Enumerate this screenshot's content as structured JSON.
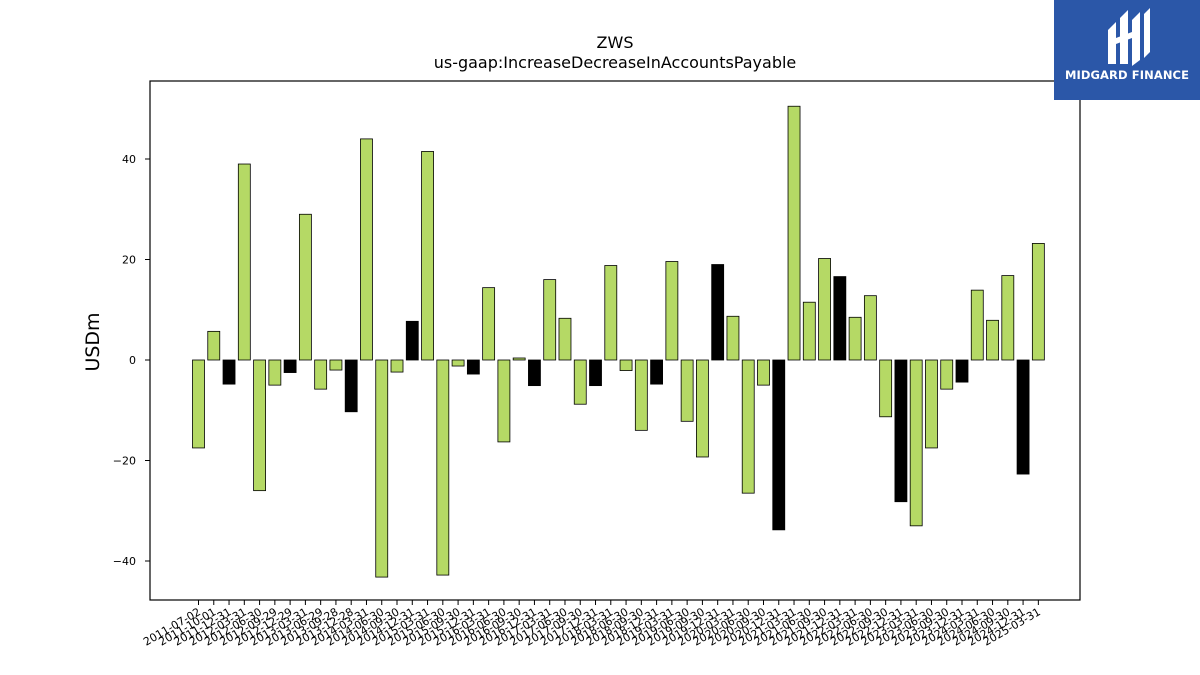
{
  "chart_data": {
    "type": "bar",
    "title": "ZWS",
    "subtitle": "us-gaap:IncreaseDecreaseInAccountsPayable",
    "xlabel": "",
    "ylabel": "USDm",
    "ylim": [
      -48,
      55
    ],
    "yticks": [
      -40,
      -20,
      0,
      20,
      40
    ],
    "grid": false,
    "colors": {
      "positive_bar": "#b5d965",
      "highlight_bar": "#000000",
      "edge": "#000000"
    },
    "categories": [
      "2011-07-02",
      "2011-10-01",
      "2011-12-31",
      "2012-03-31",
      "2012-06-30",
      "2012-09-29",
      "2012-12-29",
      "2013-03-31",
      "2013-06-29",
      "2013-09-28",
      "2013-12-28",
      "2014-03-31",
      "2014-06-30",
      "2014-09-30",
      "2014-12-31",
      "2015-03-31",
      "2015-06-30",
      "2015-09-30",
      "2015-12-31",
      "2016-03-31",
      "2016-06-30",
      "2016-09-30",
      "2016-12-31",
      "2017-03-31",
      "2017-06-30",
      "2017-09-30",
      "2017-12-31",
      "2018-03-31",
      "2018-06-30",
      "2018-09-30",
      "2018-12-31",
      "2019-03-31",
      "2019-06-30",
      "2019-09-30",
      "2019-12-31",
      "2020-03-31",
      "2020-06-30",
      "2020-09-30",
      "2020-12-31",
      "2021-03-31",
      "2021-06-30",
      "2021-09-30",
      "2021-12-31",
      "2022-03-31",
      "2022-06-30",
      "2022-09-30",
      "2022-12-31",
      "2023-03-31",
      "2023-06-30",
      "2023-09-30",
      "2023-12-31",
      "2024-03-31",
      "2024-06-30",
      "2024-09-30",
      "2024-12-31",
      "2025-03-31"
    ],
    "values": [
      -17.5,
      5.7,
      -4.8,
      39.0,
      -26.0,
      -5.0,
      -2.5,
      29.0,
      -5.8,
      -2.0,
      -10.3,
      44.0,
      -43.2,
      -2.4,
      7.7,
      41.5,
      -42.8,
      -1.2,
      -2.8,
      14.4,
      -16.3,
      0.4,
      -5.1,
      16.0,
      8.3,
      -8.8,
      -5.1,
      18.8,
      -2.1,
      -14.0,
      -4.8,
      19.6,
      -12.2,
      -19.3,
      19.0,
      8.7,
      -26.5,
      -5.0,
      -33.8,
      50.5,
      11.5,
      20.2,
      16.6,
      8.5,
      12.8,
      -11.3,
      -28.2,
      -33.0,
      -17.5,
      -5.8,
      -4.4,
      13.9,
      7.9,
      16.8,
      -22.7,
      23.2
    ],
    "highlight": [
      false,
      false,
      true,
      false,
      false,
      false,
      true,
      false,
      false,
      false,
      true,
      false,
      false,
      false,
      true,
      false,
      false,
      false,
      true,
      false,
      false,
      false,
      true,
      false,
      false,
      false,
      true,
      false,
      false,
      false,
      true,
      false,
      false,
      false,
      true,
      false,
      false,
      false,
      true,
      false,
      false,
      false,
      true,
      false,
      false,
      false,
      true,
      false,
      false,
      false,
      true,
      false,
      false,
      false,
      true,
      false
    ]
  },
  "logo": {
    "text": "MIDGARD FINANCE"
  }
}
